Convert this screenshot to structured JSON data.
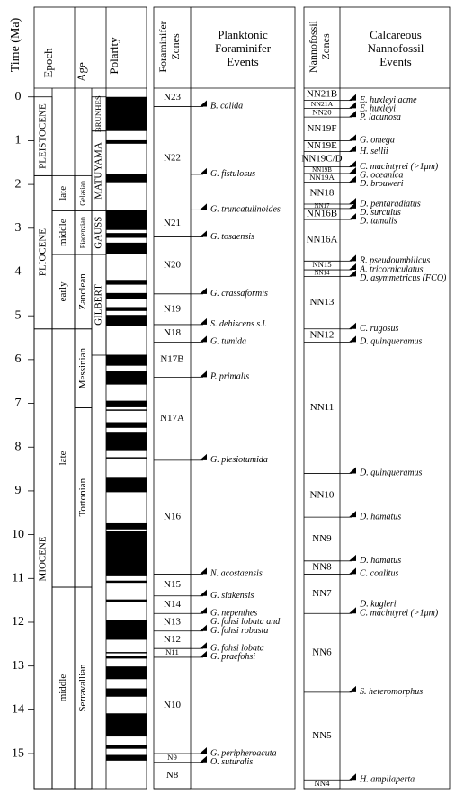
{
  "axis": {
    "label": "Time (Ma)",
    "ylim": [
      -0.2,
      15.8
    ],
    "yticks": [
      0,
      1,
      2,
      3,
      4,
      5,
      6,
      7,
      8,
      9,
      10,
      11,
      12,
      13,
      14,
      15
    ]
  },
  "headers": {
    "epoch": "Epoch",
    "age": "Age",
    "polarity": "Polarity",
    "foram_zones": [
      "Foraminifer",
      "Zones"
    ],
    "foram_events": [
      "Planktonic",
      "Foraminifer",
      "Events"
    ],
    "nanno_zones": [
      "Nannofossil",
      "Zones"
    ],
    "nanno_events": [
      "Calcareous",
      "Nannofossil",
      "Events"
    ]
  },
  "epochs": [
    {
      "label": "PLEISTOCENE",
      "top": 0,
      "base": 1.8
    },
    {
      "label": "PLIOCENE",
      "top": 1.8,
      "base": 5.3
    },
    {
      "label": "MIOCENE",
      "top": 5.3,
      "base": 15.8
    }
  ],
  "subepochs": [
    {
      "label": "late",
      "top": 1.8,
      "base": 2.6
    },
    {
      "label": "middle",
      "top": 2.6,
      "base": 3.6
    },
    {
      "label": "early",
      "top": 3.6,
      "base": 5.3
    },
    {
      "label": "late",
      "top": 5.3,
      "base": 11.2
    },
    {
      "label": "middle",
      "top": 11.2,
      "base": 15.8
    }
  ],
  "ages": [
    {
      "label": "Gelasian",
      "top": 1.8,
      "base": 2.6
    },
    {
      "label": "Piacenzian",
      "top": 2.6,
      "base": 3.6
    },
    {
      "label": "Zanclean",
      "top": 3.6,
      "base": 5.3
    },
    {
      "label": "Messinian",
      "top": 5.3,
      "base": 7.1
    },
    {
      "label": "Tortonian",
      "top": 7.1,
      "base": 11.2
    },
    {
      "label": "Serravallian",
      "top": 11.2,
      "base": 15.8
    }
  ],
  "chrons": [
    {
      "label": "BRUNHES",
      "top": 0,
      "base": 0.78
    },
    {
      "label": "MATUYAMA",
      "top": 0.78,
      "base": 2.6
    },
    {
      "label": "GAUSS",
      "top": 2.6,
      "base": 3.6
    },
    {
      "label": "GILBERT",
      "top": 3.6,
      "base": 5.9
    }
  ],
  "polarity_normal": [
    [
      0,
      0.78
    ],
    [
      0.99,
      1.07
    ],
    [
      1.77,
      1.95
    ],
    [
      2.58,
      3.04
    ],
    [
      3.11,
      3.22
    ],
    [
      3.33,
      3.58
    ],
    [
      4.18,
      4.29
    ],
    [
      4.48,
      4.62
    ],
    [
      4.8,
      4.89
    ],
    [
      4.98,
      5.23
    ],
    [
      5.89,
      6.14
    ],
    [
      6.27,
      6.57
    ],
    [
      6.94,
      7.09
    ],
    [
      7.14,
      7.17
    ],
    [
      7.43,
      7.56
    ],
    [
      7.65,
      8.07
    ],
    [
      8.23,
      8.26
    ],
    [
      8.7,
      9.03
    ],
    [
      9.74,
      9.88
    ],
    [
      9.92,
      10.95
    ],
    [
      11.05,
      11.1
    ],
    [
      11.48,
      11.53
    ],
    [
      11.94,
      12.4
    ],
    [
      12.68,
      12.71
    ],
    [
      12.78,
      12.83
    ],
    [
      13.01,
      13.3
    ],
    [
      13.51,
      13.7
    ],
    [
      14.08,
      14.61
    ],
    [
      14.8,
      14.89
    ],
    [
      15.03,
      15.16
    ]
  ],
  "foram_zones": [
    {
      "label": "N23",
      "top": -0.2,
      "base": 0.22
    },
    {
      "label": "N22",
      "top": 0.22,
      "base": 2.58
    },
    {
      "label": "N21",
      "top": 2.58,
      "base": 3.2
    },
    {
      "label": "N20",
      "top": 3.2,
      "base": 4.5
    },
    {
      "label": "N19",
      "top": 4.5,
      "base": 5.2
    },
    {
      "label": "N18",
      "top": 5.2,
      "base": 5.6
    },
    {
      "label": "N17B",
      "top": 5.6,
      "base": 6.4
    },
    {
      "label": "N17A",
      "top": 6.4,
      "base": 8.3
    },
    {
      "label": "N16",
      "top": 8.3,
      "base": 10.9
    },
    {
      "label": "N15",
      "top": 10.9,
      "base": 11.4
    },
    {
      "label": "N14",
      "top": 11.4,
      "base": 11.8
    },
    {
      "label": "N13",
      "top": 11.8,
      "base": 12.2
    },
    {
      "label": "N12",
      "top": 12.2,
      "base": 12.6
    },
    {
      "label": "N11",
      "top": 12.6,
      "base": 12.8
    },
    {
      "label": "N10",
      "top": 12.8,
      "base": 15.0
    },
    {
      "label": "N9",
      "top": 15.0,
      "base": 15.2
    },
    {
      "label": "N8",
      "top": 15.2,
      "base": 15.8
    }
  ],
  "foram_events": [
    {
      "label": "B. calida",
      "age": 0.22
    },
    {
      "label": "G. fistulosus",
      "age": 1.77
    },
    {
      "label": "G. truncatulinoides",
      "age": 2.58
    },
    {
      "label": "G. tosaensis",
      "age": 3.2
    },
    {
      "label": "G. crassaformis",
      "age": 4.5
    },
    {
      "label": "S. dehiscens s.l.",
      "age": 5.2
    },
    {
      "label": "G. tumida",
      "age": 5.6
    },
    {
      "label": "P. primalis",
      "age": 6.4
    },
    {
      "label": "G. plesiotumida",
      "age": 8.3
    },
    {
      "label": "N. acostaensis",
      "age": 10.9
    },
    {
      "label": "G. siakensis",
      "age": 11.4
    },
    {
      "label": "G. nepenthes",
      "age": 11.8
    },
    {
      "label": [
        "G. fohsi lobata and",
        "G. fohsi robusta"
      ],
      "age": 12.2
    },
    {
      "label": "G. fohsi lobata",
      "age": 12.6
    },
    {
      "label": "G. praefohsi",
      "age": 12.8
    },
    {
      "label": "G. peripheroacuta",
      "age": 15.0
    },
    {
      "label": "O. suturalis",
      "age": 15.2
    }
  ],
  "nanno_zones": [
    {
      "label": "NN21B",
      "top": -0.2,
      "base": 0.08
    },
    {
      "label": "NN21A",
      "top": 0.08,
      "base": 0.26
    },
    {
      "label": "NN20",
      "top": 0.26,
      "base": 0.46
    },
    {
      "label": "NN19F",
      "top": 0.46,
      "base": 1.0
    },
    {
      "label": "NN19E",
      "top": 1.0,
      "base": 1.25
    },
    {
      "label": "NN19C/D",
      "top": 1.25,
      "base": 1.6
    },
    {
      "label": "NN19B",
      "top": 1.6,
      "base": 1.75
    },
    {
      "label": "NN19A",
      "top": 1.75,
      "base": 1.95
    },
    {
      "label": "NN18",
      "top": 1.95,
      "base": 2.45
    },
    {
      "label": "NN17",
      "top": 2.45,
      "base": 2.55
    },
    {
      "label": "NN16B",
      "top": 2.55,
      "base": 2.8
    },
    {
      "label": "NN16A",
      "top": 2.8,
      "base": 3.75
    },
    {
      "label": "NN15",
      "top": 3.75,
      "base": 3.95
    },
    {
      "label": "NN14",
      "top": 3.95,
      "base": 4.1
    },
    {
      "label": "NN13",
      "top": 4.1,
      "base": 5.3
    },
    {
      "label": "NN12",
      "top": 5.3,
      "base": 5.6
    },
    {
      "label": "NN11",
      "top": 5.6,
      "base": 8.6
    },
    {
      "label": "NN10",
      "top": 8.6,
      "base": 9.6
    },
    {
      "label": "NN9",
      "top": 9.6,
      "base": 10.6
    },
    {
      "label": "NN8",
      "top": 10.6,
      "base": 10.9
    },
    {
      "label": "NN7",
      "top": 10.9,
      "base": 11.8
    },
    {
      "label": "NN6",
      "top": 11.8,
      "base": 13.6
    },
    {
      "label": "NN5",
      "top": 13.6,
      "base": 15.6
    },
    {
      "label": "NN4",
      "top": 15.6,
      "base": 15.8
    }
  ],
  "nanno_events": [
    {
      "label": "E. huxleyi acme",
      "age": 0.08
    },
    {
      "label": "E. huxleyi",
      "age": 0.26
    },
    {
      "label": "P. lacunosa",
      "age": 0.46
    },
    {
      "label": "G. omega",
      "age": 1.0
    },
    {
      "label": "H. sellii",
      "age": 1.25
    },
    {
      "label": "C. macintyrei (>1μm)",
      "age": 1.6
    },
    {
      "label": "G. oceanica",
      "age": 1.75
    },
    {
      "label": "D. brouweri",
      "age": 1.95
    },
    {
      "label": "D. pentaradiatus",
      "age": 2.45
    },
    {
      "label": "D. surculus",
      "age": 2.55
    },
    {
      "label": "D. tamalis",
      "age": 2.8
    },
    {
      "label": "R. pseudoumbilicus",
      "age": 3.75
    },
    {
      "label": "A. tricorniculatus",
      "age": 3.95
    },
    {
      "label": "D. asymmetricus (FCO)",
      "age": 4.1
    },
    {
      "label": "C. rugosus",
      "age": 5.3
    },
    {
      "label": "D. quinqueramus",
      "age": 5.6
    },
    {
      "label": "D. quinqueramus",
      "age": 8.6
    },
    {
      "label": "D. hamatus",
      "age": 9.6
    },
    {
      "label": "D. hamatus",
      "age": 10.6
    },
    {
      "label": "C. coalitus",
      "age": 10.9
    },
    {
      "label": [
        "D. kugleri",
        "C. macintyrei (>1μm)"
      ],
      "age": 11.8
    },
    {
      "label": "S. heteromorphus",
      "age": 13.6
    },
    {
      "label": "H. ampliaperta",
      "age": 15.6
    }
  ]
}
